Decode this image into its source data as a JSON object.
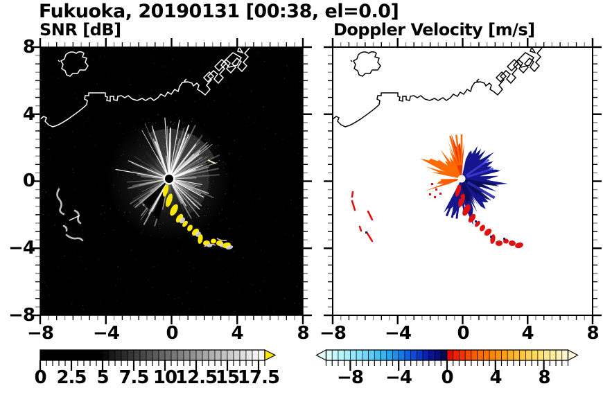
{
  "title": "Fukuoka, 20190131 [00:38, el=0.0]",
  "panels": {
    "snr": {
      "title": "SNR [dB]",
      "background": "#000000",
      "coast_color": "#ffffff",
      "echo_chain_color": "#ffe800",
      "clutter_color": "#bdbdbd"
    },
    "velocity": {
      "title": "Doppler Velocity [m/s]",
      "background": "#ffffff",
      "coast_color": "#000000",
      "negative_fan_color": "#15158e",
      "positive_fan_color": "#ff6a00",
      "chain_color": "#dd1111"
    }
  },
  "axes": {
    "x_labels": [
      "−8",
      "−4",
      "0",
      "4",
      "8"
    ],
    "y_labels": [
      "8",
      "4",
      "0",
      "−4",
      "−8"
    ],
    "x_range": [
      -8,
      8
    ],
    "y_range": [
      -8,
      8
    ]
  },
  "colorbars": {
    "snr": {
      "labels": [
        "0",
        "2.5",
        "5",
        "7.5",
        "10",
        "12.5",
        "15",
        "17.5"
      ],
      "range": [
        0,
        18
      ],
      "stops": [
        [
          0,
          "#000000"
        ],
        [
          5,
          "#000000"
        ],
        [
          5.5,
          "#141414"
        ],
        [
          18,
          "#ffffff"
        ]
      ],
      "overflow_arrow_color": "#ffe800"
    },
    "velocity": {
      "labels": [
        "−8",
        "−4",
        "0",
        "4",
        "8"
      ],
      "range": [
        -10,
        10
      ],
      "negative_stops": [
        [
          -10,
          "#e2feff"
        ],
        [
          -7.5,
          "#8fe7f9"
        ],
        [
          -5,
          "#28b0f2"
        ],
        [
          -3,
          "#0a57e0"
        ],
        [
          -1.5,
          "#0916a8"
        ],
        [
          -0.001,
          "#060646"
        ]
      ],
      "positive_stops": [
        [
          0.001,
          "#e00000"
        ],
        [
          2,
          "#fa5500"
        ],
        [
          4,
          "#ff8c00"
        ],
        [
          6,
          "#ffc235"
        ],
        [
          7.5,
          "#ffdf66"
        ],
        [
          10,
          "#fff9d6"
        ]
      ]
    }
  },
  "chart_data": [
    {
      "type": "heatmap",
      "title": "SNR [dB]",
      "x_range": [
        -8,
        8
      ],
      "y_range": [
        -8,
        8
      ],
      "x_ticks": [
        -8,
        -4,
        0,
        4,
        8
      ],
      "y_ticks": [
        -8,
        -4,
        0,
        4,
        8
      ],
      "units": "dB",
      "colorbar_range": [
        0,
        18
      ],
      "colorbar_ticks": [
        0,
        2.5,
        5,
        7.5,
        10,
        12.5,
        15,
        17.5
      ],
      "colorbar_scale": "black (0 dB) to white (18 dB), yellow overflow arrow (>18 dB)",
      "features": [
        "radar located near (-0.1, 0.1) with grayscale clutter starburst of radial rays, radius about 3-4 km, brightest toward N-NE and SW",
        "high-SNR yellow echo chain curving from (-0.2,-0.7) southeast to (3.4,-4.0)",
        "faint gray clutter squiggles near (-6.8,-1.0) to (-5.6,-3.8)",
        "white coastline of bay with island near (-6.5,7) and angled harbor piers near (2..5, 5..7.5)"
      ]
    },
    {
      "type": "heatmap",
      "title": "Doppler Velocity [m/s]",
      "x_range": [
        -8,
        8
      ],
      "y_range": [
        -8,
        8
      ],
      "x_ticks": [
        -8,
        -4,
        0,
        4,
        8
      ],
      "y_ticks": [
        -8,
        -4,
        0,
        4,
        8
      ],
      "units": "m/s",
      "colorbar_range": [
        -10,
        10
      ],
      "colorbar_ticks": [
        -8,
        -4,
        0,
        4,
        8
      ],
      "colorbar_scale": "pale cyan (-10) deepening to dark navy (0-) for negative; red (0+) through orange and yellow to cream (+10); arrows both ends",
      "features": [
        "positive-velocity orange fan northwest/above radar and a smaller orange wedge pointing west",
        "negative-velocity dark navy fan east through south of radar",
        "white dot at radar position near (-0.1, 0.1)",
        "red positive-velocity echo chain curving southeast to (3.4,-4.0) with a few navy specks",
        "scattered red dashes in lower-left quadrant near (-6.8,-1.0) to (-5.6,-3.8)",
        "black coastline identical to SNR panel"
      ]
    }
  ]
}
